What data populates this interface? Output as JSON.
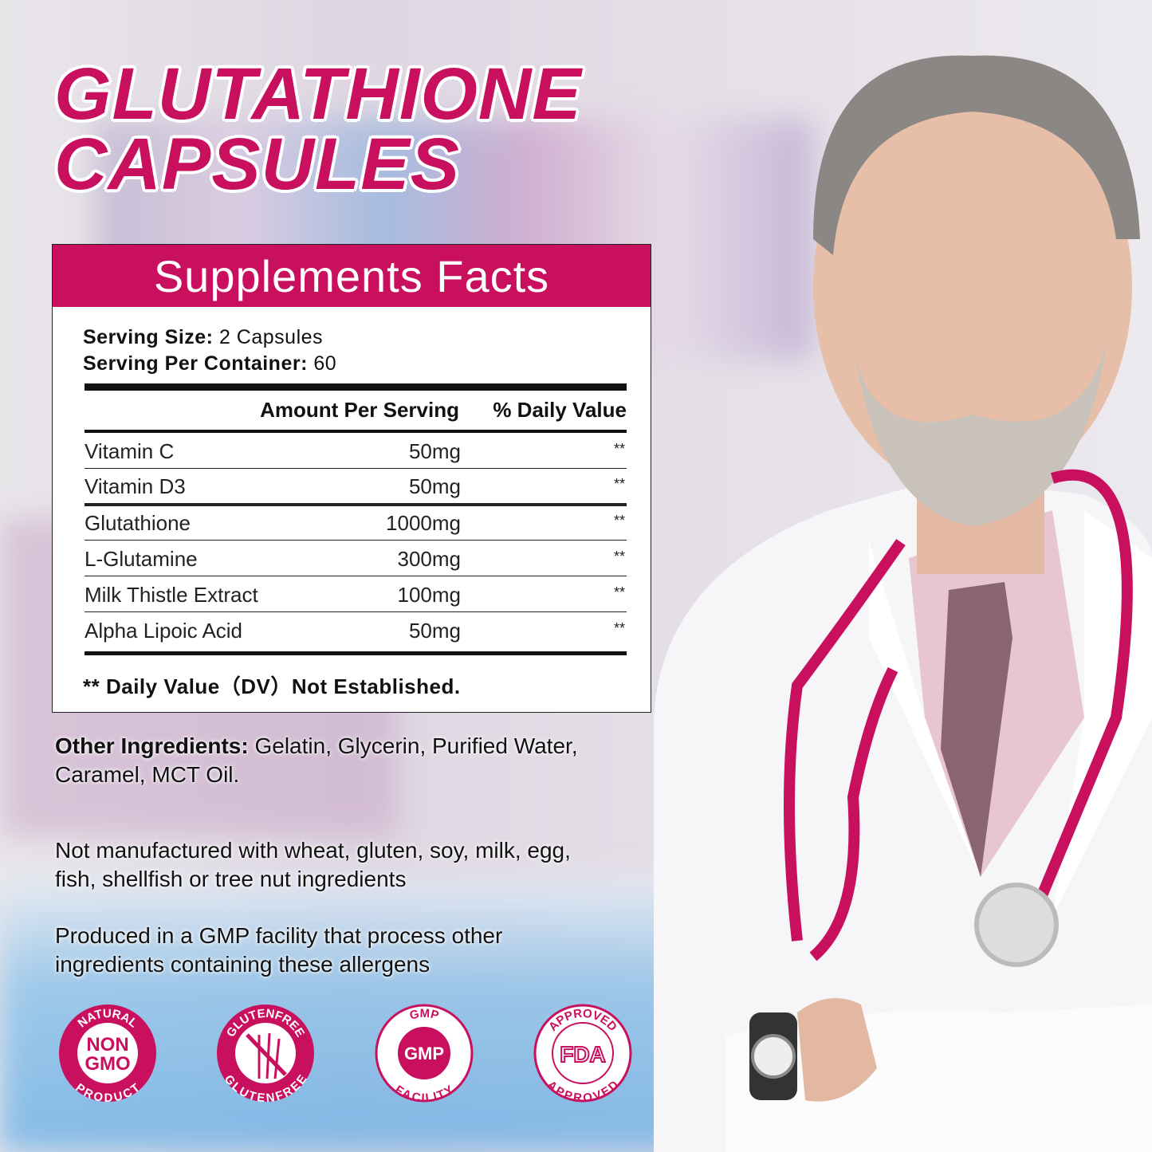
{
  "title": {
    "line1": "GLUTATHIONE",
    "line2": "CAPSULES"
  },
  "facts": {
    "heading": "Supplements Facts",
    "serving_size_label": "Serving Size:",
    "serving_size_value": "2 Capsules",
    "servings_label": "Serving Per Container:",
    "servings_value": "60",
    "col_amount": "Amount Per Serving",
    "col_dv": "% Daily Value",
    "rows": [
      {
        "name": "Vitamin C",
        "amount": "50mg",
        "dv": "**"
      },
      {
        "name": "Vitamin D3",
        "amount": "50mg",
        "dv": "**"
      },
      {
        "name": "Glutathione",
        "amount": "1000mg",
        "dv": "**"
      },
      {
        "name": "L-Glutamine",
        "amount": "300mg",
        "dv": "**"
      },
      {
        "name": "Milk Thistle Extract",
        "amount": "100mg",
        "dv": "**"
      },
      {
        "name": "Alpha Lipoic Acid",
        "amount": "50mg",
        "dv": "**"
      }
    ],
    "footnote": "** Daily Value（DV）Not Established."
  },
  "other": {
    "label": "Other Ingredients:",
    "line1": " Gelatin, Glycerin, Purified Water,",
    "line2": "Caramel, MCT Oil."
  },
  "allergen": {
    "line1": "Not manufactured with wheat, gluten, soy, milk, egg,",
    "line2": "fish, shellfish or tree nut ingredients"
  },
  "gmp_note": {
    "line1": "Produced in a GMP facility that process other",
    "line2": "ingredients containing these allergens"
  },
  "badges": [
    {
      "top": "NATURAL",
      "center1": "NON",
      "center2": "GMO",
      "bottom": "PRODUCT"
    },
    {
      "top": "GLUTENFREE",
      "bottom": "GLUTENFREE"
    },
    {
      "top": "GMP",
      "center1": "GMP",
      "bottom": "FACILITY"
    },
    {
      "top": "APPROVED",
      "center1": "FDA",
      "bottom": "APPROVED"
    }
  ],
  "colors": {
    "brand": "#c8105e"
  }
}
